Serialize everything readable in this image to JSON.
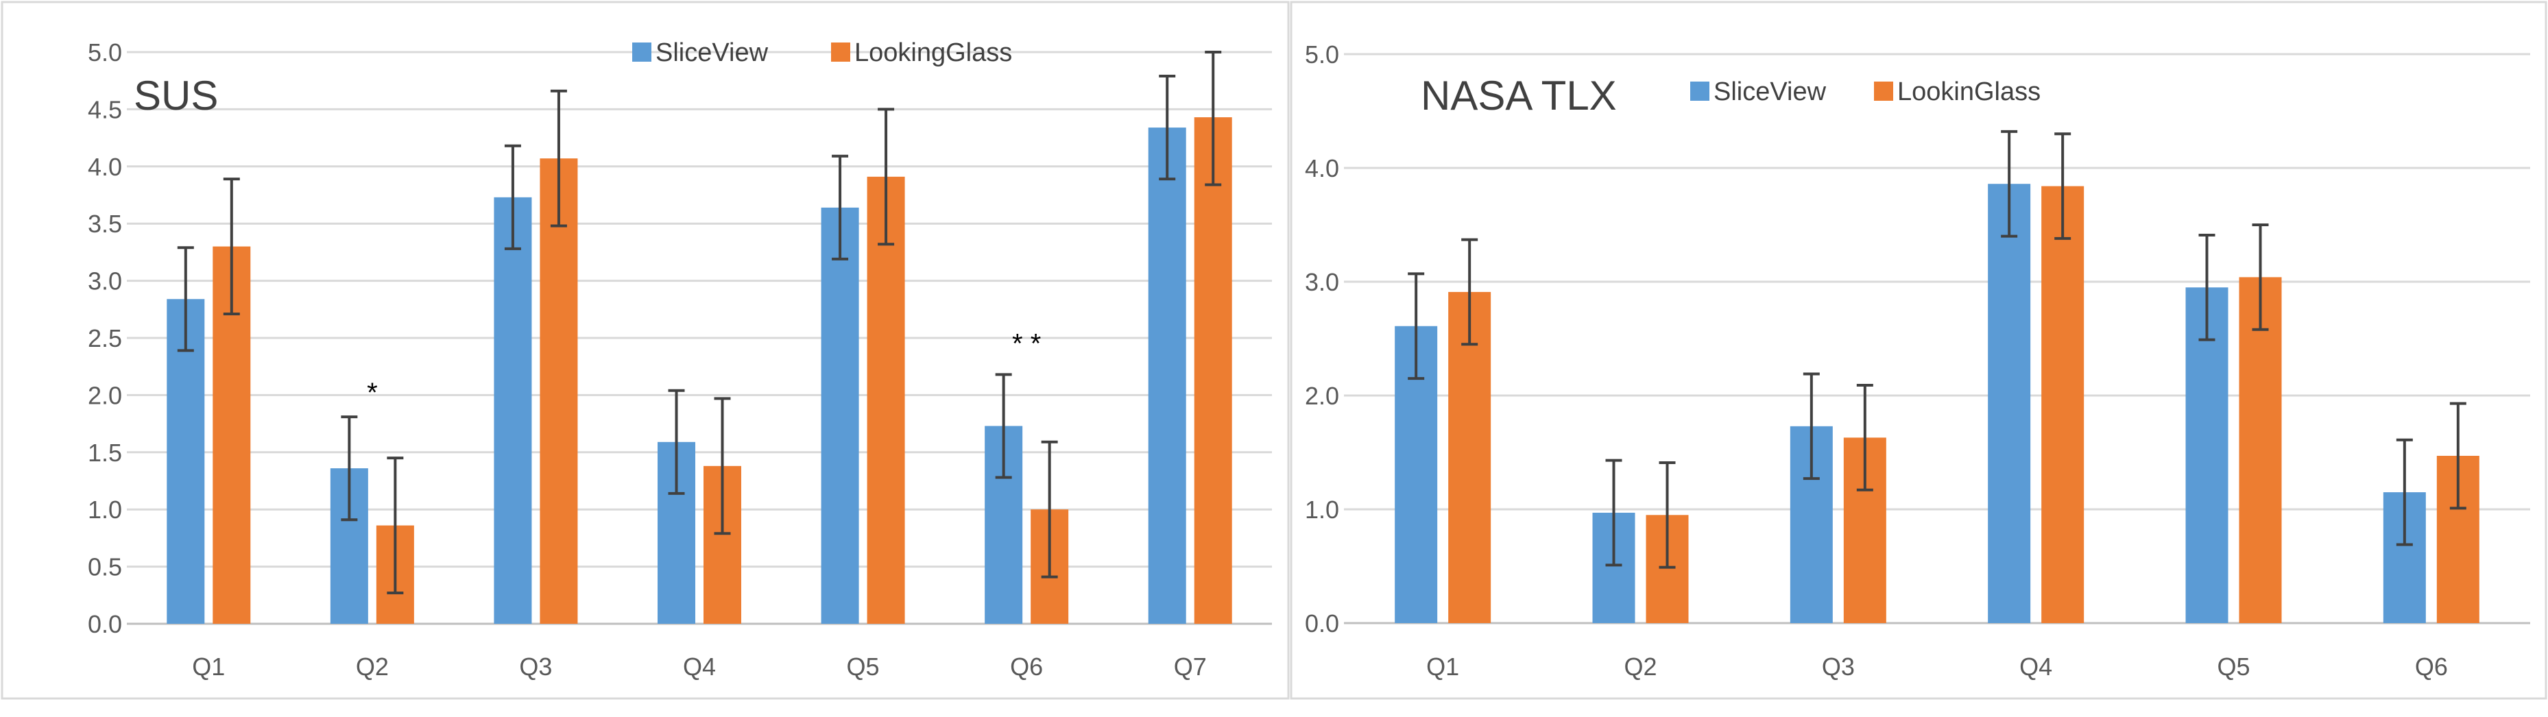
{
  "chart_data": [
    {
      "type": "bar",
      "title": "SUS",
      "categories": [
        "Q1",
        "Q2",
        "Q3",
        "Q4",
        "Q5",
        "Q6",
        "Q7"
      ],
      "series": [
        {
          "name": "SliceView",
          "color": "#5B9BD5",
          "values": [
            2.84,
            1.36,
            3.73,
            1.59,
            3.64,
            1.73,
            4.34
          ],
          "errors": [
            0.45,
            0.45,
            0.45,
            0.45,
            0.45,
            0.45,
            0.45
          ]
        },
        {
          "name": "LookingGlass",
          "color": "#ED7D31",
          "values": [
            3.3,
            0.86,
            4.07,
            1.38,
            3.91,
            1.0,
            4.43
          ],
          "errors": [
            0.59,
            0.59,
            0.59,
            0.59,
            0.59,
            0.59,
            0.59
          ]
        }
      ],
      "yticks": [
        "0.0",
        "0.5",
        "1.0",
        "1.5",
        "2.0",
        "2.5",
        "3.0",
        "3.5",
        "4.0",
        "4.5",
        "5.0"
      ],
      "ylim": [
        0,
        5
      ],
      "grid": true,
      "legend": "top-center",
      "annotations": [
        {
          "category": "Q2",
          "text": "*",
          "y": 2.05
        },
        {
          "category": "Q6",
          "text": "* *",
          "y": 2.48
        }
      ]
    },
    {
      "type": "bar",
      "title": "NASA TLX",
      "categories": [
        "Q1",
        "Q2",
        "Q3",
        "Q4",
        "Q5",
        "Q6"
      ],
      "series": [
        {
          "name": "SliceView",
          "color": "#5B9BD5",
          "values": [
            2.61,
            0.97,
            1.73,
            3.86,
            2.95,
            1.15
          ],
          "errors": [
            0.46,
            0.46,
            0.46,
            0.46,
            0.46,
            0.46
          ]
        },
        {
          "name": "LookinGlass",
          "color": "#ED7D31",
          "values": [
            2.91,
            0.95,
            1.63,
            3.84,
            3.04,
            1.47
          ],
          "errors": [
            0.46,
            0.46,
            0.46,
            0.46,
            0.46,
            0.46
          ]
        }
      ],
      "yticks": [
        "0.0",
        "1.0",
        "2.0",
        "3.0",
        "4.0",
        "5.0"
      ],
      "ylim": [
        0,
        5
      ],
      "grid": true,
      "legend": "top-center",
      "annotations": []
    }
  ]
}
